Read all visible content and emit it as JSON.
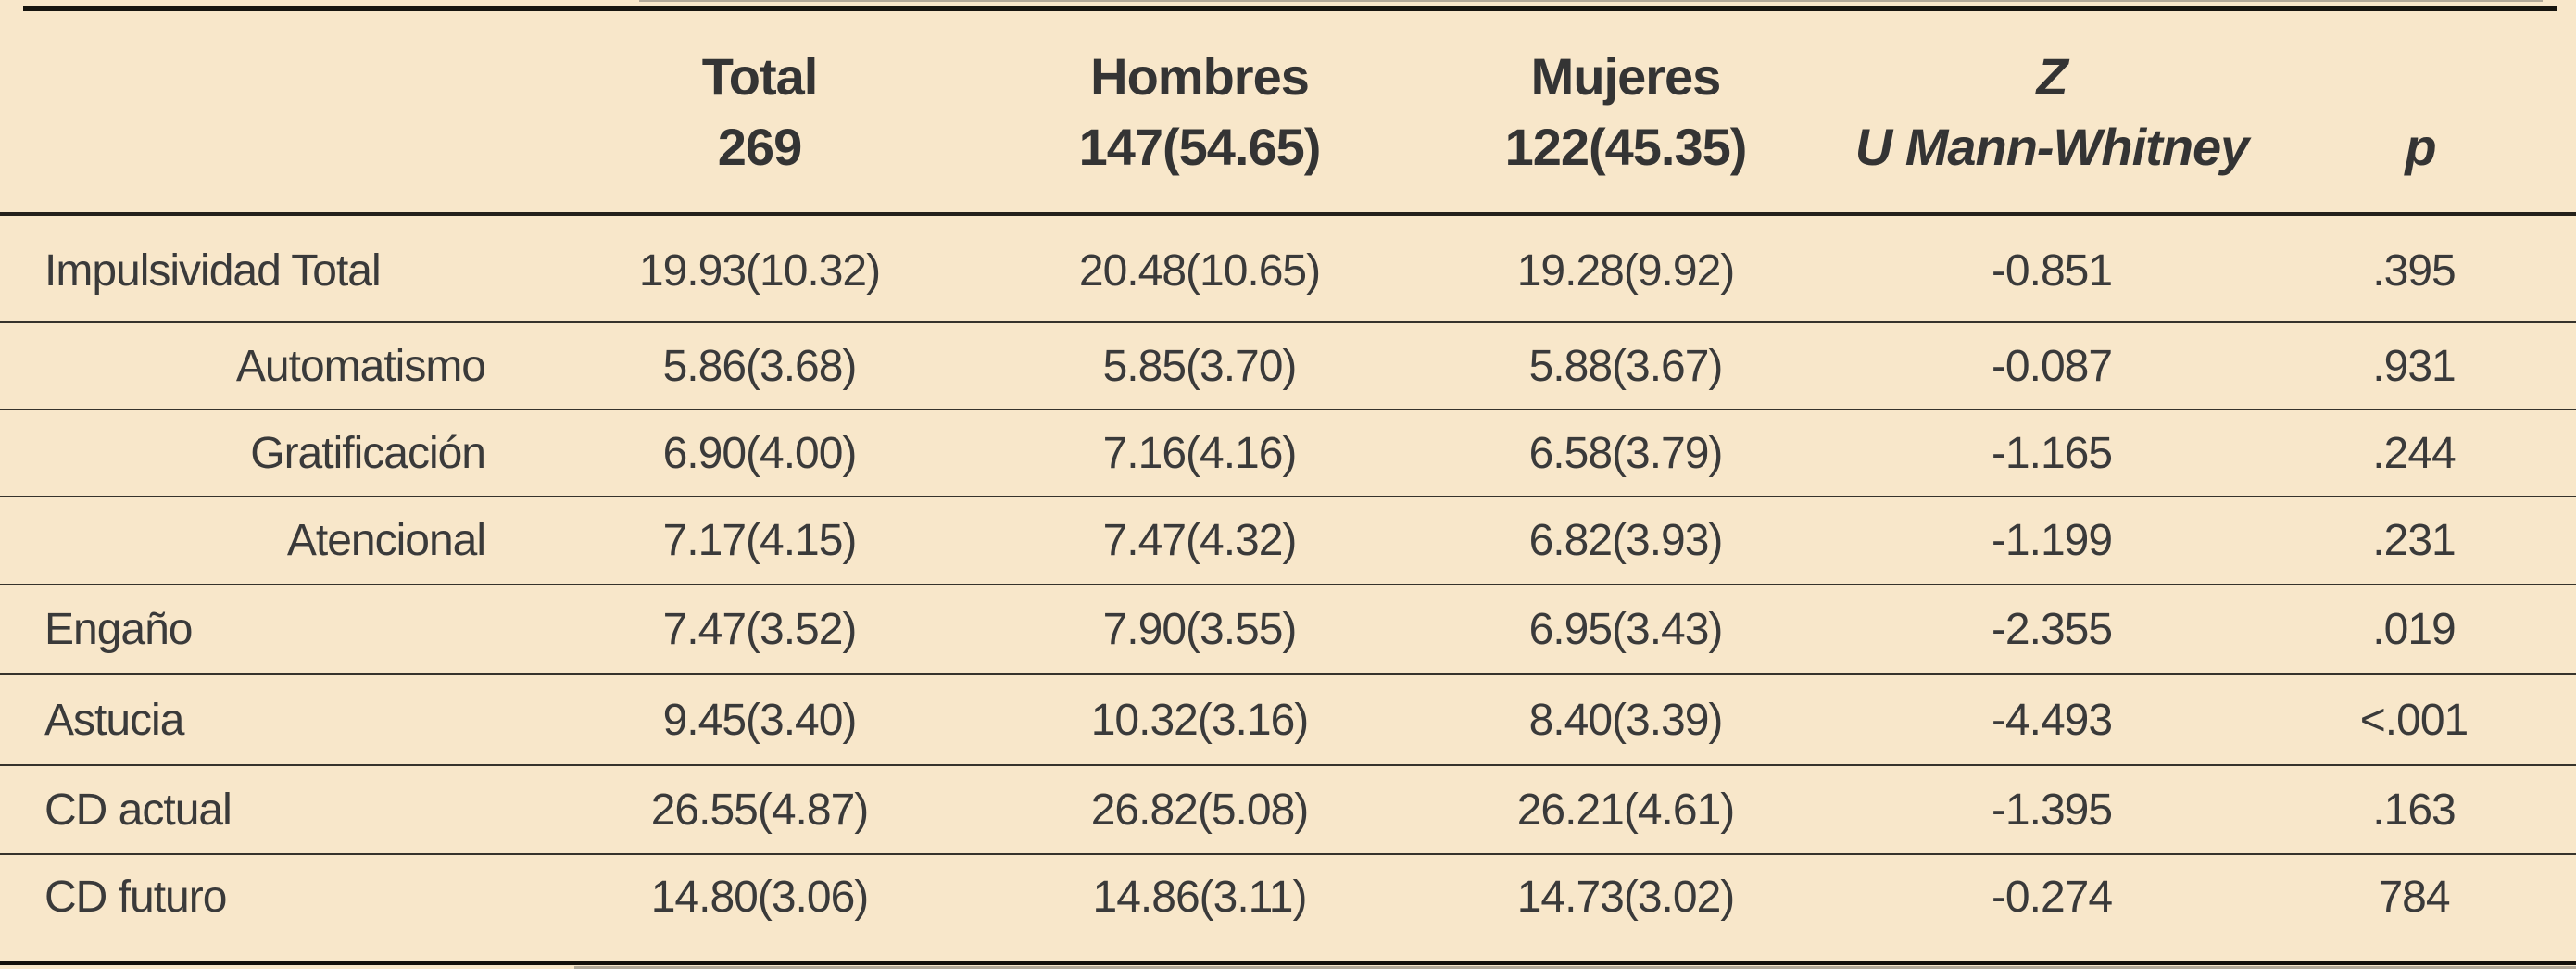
{
  "table": {
    "description": "Descriptive statistics and Mann-Whitney U comparison by sex",
    "colors": {
      "background": "#f8e7ca",
      "text": "#3a3a3a",
      "thick_rule": "#14110c",
      "thin_rule": "#36332c"
    },
    "header": {
      "label_column": "",
      "total": {
        "line1": "Total",
        "line2": "269"
      },
      "hombres": {
        "line1": "Hombres",
        "line2": "147(54.65)"
      },
      "mujeres": {
        "line1": "Mujeres",
        "line2": "122(45.35)"
      },
      "z": {
        "line1": "Z",
        "line2": "U Mann-Whitney"
      },
      "p": {
        "line1": "",
        "line2": "p"
      }
    },
    "rows": [
      {
        "label": "Impulsividad Total",
        "indented": false,
        "total": "19.93(10.32)",
        "hombres": "20.48(10.65)",
        "mujeres": "19.28(9.92)",
        "z": "-0.851",
        "p": ".395"
      },
      {
        "label": "Automatismo",
        "indented": true,
        "total": "5.86(3.68)",
        "hombres": "5.85(3.70)",
        "mujeres": "5.88(3.67)",
        "z": "-0.087",
        "p": ".931"
      },
      {
        "label": "Gratificación",
        "indented": true,
        "total": "6.90(4.00)",
        "hombres": "7.16(4.16)",
        "mujeres": "6.58(3.79)",
        "z": "-1.165",
        "p": ".244"
      },
      {
        "label": "Atencional",
        "indented": true,
        "total": "7.17(4.15)",
        "hombres": "7.47(4.32)",
        "mujeres": "6.82(3.93)",
        "z": "-1.199",
        "p": ".231"
      },
      {
        "label": "Engaño",
        "indented": false,
        "total": "7.47(3.52)",
        "hombres": "7.90(3.55)",
        "mujeres": "6.95(3.43)",
        "z": "-2.355",
        "p": ".019"
      },
      {
        "label": "Astucia",
        "indented": false,
        "total": "9.45(3.40)",
        "hombres": "10.32(3.16)",
        "mujeres": "8.40(3.39)",
        "z": "-4.493",
        "p": "<.001"
      },
      {
        "label": "CD actual",
        "indented": false,
        "total": "26.55(4.87)",
        "hombres": "26.82(5.08)",
        "mujeres": "26.21(4.61)",
        "z": "-1.395",
        "p": ".163"
      },
      {
        "label": "CD futuro",
        "indented": false,
        "total": "14.80(3.06)",
        "hombres": "14.86(3.11)",
        "mujeres": "14.73(3.02)",
        "z": "-0.274",
        "p": "784"
      }
    ]
  }
}
